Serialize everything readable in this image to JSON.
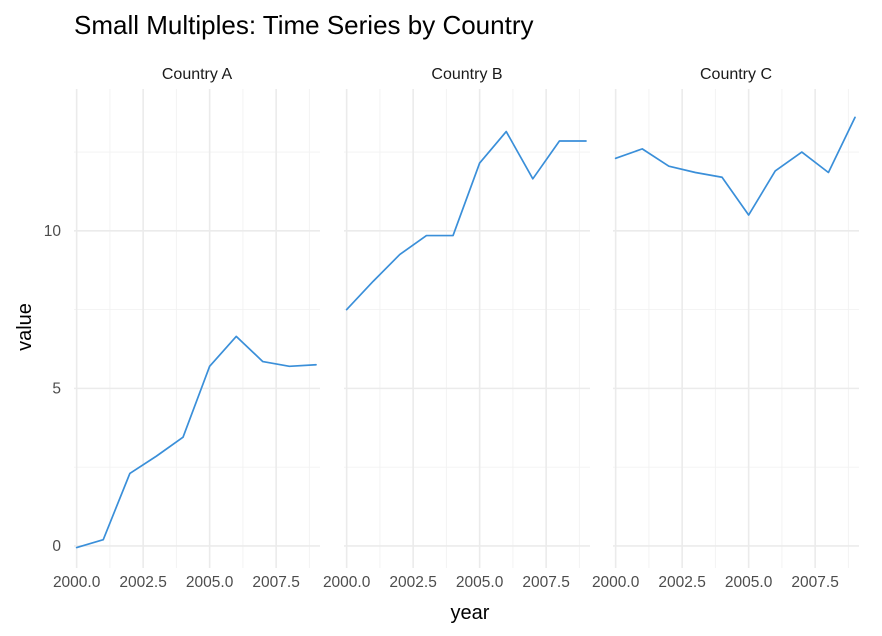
{
  "chart_data": {
    "type": "line",
    "title": "Small Multiples: Time Series by Country",
    "xlabel": "year",
    "ylabel": "value",
    "xlim": [
      1999.9,
      2009.15
    ],
    "ylim": [
      -0.7,
      14.5
    ],
    "x_ticks": [
      2000.0,
      2002.5,
      2005.0,
      2007.5
    ],
    "x_tick_labels": [
      "2000.0",
      "2002.5",
      "2005.0",
      "2007.5"
    ],
    "y_ticks": [
      0,
      5,
      10
    ],
    "y_tick_labels": [
      "0",
      "5",
      "10"
    ],
    "grid": true,
    "line_color": "#3a8fd9",
    "panels": [
      {
        "label": "Country A",
        "x": [
          2000,
          2001,
          2002,
          2003,
          2004,
          2005,
          2006,
          2007,
          2008,
          2009
        ],
        "y": [
          -0.05,
          0.2,
          2.3,
          2.85,
          3.45,
          5.7,
          6.65,
          5.85,
          5.7,
          5.75
        ]
      },
      {
        "label": "Country B",
        "x": [
          2000,
          2001,
          2002,
          2003,
          2004,
          2005,
          2006,
          2007,
          2008,
          2009
        ],
        "y": [
          7.5,
          8.4,
          9.25,
          9.85,
          9.85,
          12.15,
          13.15,
          11.65,
          12.85,
          12.85
        ]
      },
      {
        "label": "Country C",
        "x": [
          2000,
          2001,
          2002,
          2003,
          2004,
          2005,
          2006,
          2007,
          2008,
          2009
        ],
        "y": [
          12.3,
          12.6,
          12.05,
          11.85,
          11.7,
          10.5,
          11.9,
          12.5,
          11.85,
          13.6
        ]
      }
    ]
  }
}
